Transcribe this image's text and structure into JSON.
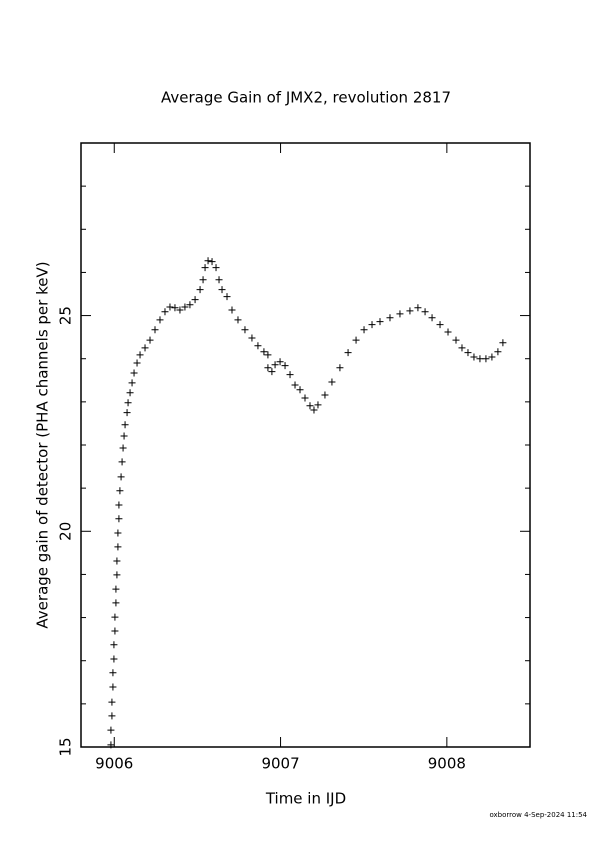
{
  "chart_data": {
    "type": "scatter",
    "marker": "+",
    "color": "#000000",
    "title": "Average Gain of JMX2, revolution 2817",
    "x_label": "Time in IJD",
    "y_label": "Average gain of detector (PHA channels per keV)",
    "footer": "oxborrow  4-Sep-2024 11:54",
    "xlim": [
      9005.8,
      9008.5
    ],
    "ylim": [
      15,
      29
    ],
    "xticks": [
      9006,
      9007,
      9008
    ],
    "yticks": [
      15,
      20,
      25
    ],
    "yminorticks": [
      16,
      17,
      18,
      19,
      21,
      22,
      23,
      24,
      26,
      27,
      28
    ],
    "x": [
      9005.98,
      9005.98,
      9005.986,
      9005.986,
      9005.992,
      9005.992,
      9005.998,
      9005.998,
      9006.004,
      9006.004,
      9006.01,
      9006.01,
      9006.016,
      9006.016,
      9006.022,
      9006.022,
      9006.028,
      9006.028,
      9006.034,
      9006.041,
      9006.047,
      9006.053,
      9006.059,
      9006.065,
      9006.077,
      9006.083,
      9006.095,
      9006.107,
      9006.119,
      9006.137,
      9006.155,
      9006.185,
      9006.215,
      9006.245,
      9006.275,
      9006.305,
      9006.335,
      9006.365,
      9006.395,
      9006.425,
      9006.455,
      9006.486,
      9006.516,
      9006.534,
      9006.546,
      9006.564,
      9006.588,
      9006.612,
      9006.63,
      9006.648,
      9006.678,
      9006.708,
      9006.744,
      9006.786,
      9006.828,
      9006.864,
      9006.9,
      9006.924,
      9006.924,
      9006.948,
      9006.967,
      9006.997,
      9007.027,
      9007.057,
      9007.087,
      9007.117,
      9007.147,
      9007.177,
      9007.201,
      9007.225,
      9007.267,
      9007.309,
      9007.357,
      9007.406,
      9007.454,
      9007.502,
      9007.55,
      9007.598,
      9007.658,
      9007.718,
      9007.778,
      9007.826,
      9007.869,
      9007.911,
      9007.959,
      9008.007,
      9008.055,
      9008.091,
      9008.127,
      9008.163,
      9008.199,
      9008.235,
      9008.271,
      9008.307,
      9008.337
    ],
    "values": [
      15.05,
      15.39,
      15.72,
      16.04,
      16.39,
      16.72,
      17.04,
      17.37,
      17.69,
      18.01,
      18.34,
      18.66,
      18.99,
      19.31,
      19.64,
      19.96,
      20.29,
      20.61,
      20.94,
      21.26,
      21.61,
      21.93,
      22.21,
      22.47,
      22.75,
      22.98,
      23.21,
      23.44,
      23.67,
      23.9,
      24.09,
      24.25,
      24.43,
      24.67,
      24.9,
      25.09,
      25.2,
      25.18,
      25.13,
      25.2,
      25.25,
      25.37,
      25.6,
      25.83,
      26.11,
      26.27,
      26.25,
      26.11,
      25.83,
      25.6,
      25.44,
      25.13,
      24.9,
      24.67,
      24.48,
      24.3,
      24.16,
      24.09,
      23.79,
      23.7,
      23.86,
      23.93,
      23.84,
      23.63,
      23.39,
      23.28,
      23.09,
      22.91,
      22.81,
      22.93,
      23.16,
      23.46,
      23.79,
      24.14,
      24.43,
      24.67,
      24.79,
      24.86,
      24.95,
      25.04,
      25.11,
      25.18,
      25.09,
      24.95,
      24.79,
      24.62,
      24.43,
      24.25,
      24.14,
      24.04,
      24.0,
      24.0,
      24.04,
      24.16,
      24.37
    ]
  }
}
